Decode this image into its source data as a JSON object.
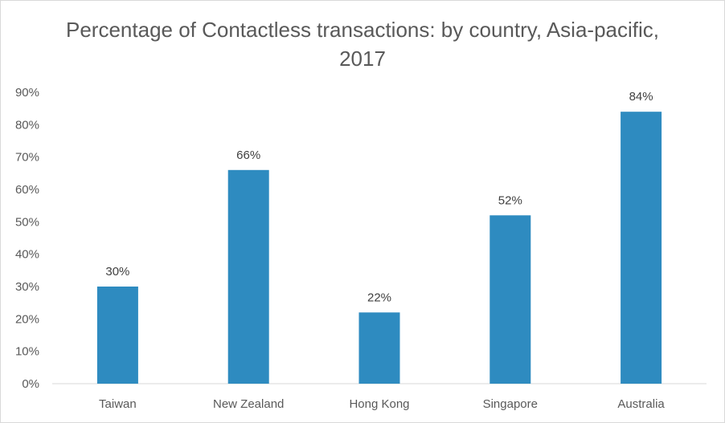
{
  "chart_data": {
    "type": "bar",
    "title": "Percentage of Contactless transactions: by country, Asia-pacific, 2017",
    "categories": [
      "Taiwan",
      "New Zealand",
      "Hong Kong",
      "Singapore",
      "Australia"
    ],
    "values": [
      30,
      66,
      22,
      52,
      84
    ],
    "data_labels": [
      "30%",
      "66%",
      "22%",
      "52%",
      "84%"
    ],
    "ylim": [
      0,
      90
    ],
    "yticks": [
      0,
      10,
      20,
      30,
      40,
      50,
      60,
      70,
      80,
      90
    ],
    "ytick_labels": [
      "0%",
      "10%",
      "20%",
      "30%",
      "40%",
      "50%",
      "60%",
      "70%",
      "80%",
      "90%"
    ],
    "xlabel": "",
    "ylabel": "",
    "grid": false,
    "bar_color": "#2e8bc0",
    "axis_color": "#d9d9d9"
  }
}
